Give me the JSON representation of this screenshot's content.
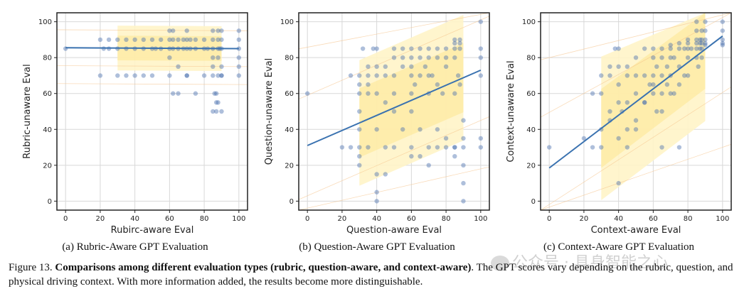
{
  "figure": {
    "caption_label": "Figure 13.",
    "caption_bold": "Comparisons among different evaluation types (rubric, question-aware, and context-aware)",
    "caption_rest": ". The GPT scores vary depending on the rubric, question, and physical driving context. With more information added, the results become more distinguishable."
  },
  "subcaptions": [
    "(a) Rubric-Aware GPT Evaluation",
    "(b) Question-Aware GPT Evaluation",
    "(c) Context-Aware GPT Evaluation"
  ],
  "watermark": "公众号 · 具身智能之心",
  "colors": {
    "points": "#4c72b0",
    "line": "#3a72b0",
    "band": "#fde9a0",
    "band_light": "#fff4c8"
  },
  "chart_data": [
    {
      "type": "scatter",
      "xlabel": "Rubirc-aware Eval",
      "ylabel": "Rubric-unaware Eval",
      "xlim": [
        -5,
        105
      ],
      "ylim": [
        -5,
        105
      ],
      "xticks": [
        0,
        20,
        40,
        60,
        80,
        100
      ],
      "yticks": [
        0,
        20,
        40,
        60,
        80,
        100
      ],
      "grid": true,
      "fit": {
        "intercept": 85.5,
        "slope": -0.005
      },
      "band": {
        "x": [
          30,
          90
        ],
        "y": [
          70,
          95
        ]
      },
      "x": [
        0,
        20,
        20,
        22,
        25,
        25,
        30,
        30,
        30,
        35,
        35,
        35,
        40,
        40,
        40,
        45,
        45,
        50,
        50,
        50,
        55,
        55,
        60,
        60,
        60,
        60,
        60,
        62,
        62,
        62,
        65,
        65,
        65,
        65,
        68,
        68,
        70,
        70,
        70,
        70,
        72,
        72,
        75,
        75,
        75,
        80,
        80,
        80,
        82,
        85,
        85,
        85,
        85,
        85,
        85,
        86,
        87,
        87,
        88,
        88,
        88,
        88,
        88,
        90,
        90,
        90,
        90,
        90,
        90,
        100,
        100,
        100,
        100,
        100,
        100,
        62,
        70,
        85,
        87,
        88,
        89,
        90,
        45,
        52
      ],
      "y": [
        85,
        90,
        70,
        85,
        90,
        85,
        90,
        85,
        70,
        90,
        85,
        70,
        90,
        85,
        70,
        90,
        85,
        90,
        85,
        70,
        90,
        85,
        95,
        90,
        85,
        80,
        70,
        95,
        90,
        85,
        90,
        85,
        75,
        60,
        90,
        85,
        95,
        90,
        85,
        70,
        90,
        85,
        90,
        85,
        60,
        90,
        85,
        70,
        85,
        95,
        90,
        85,
        80,
        75,
        70,
        60,
        55,
        50,
        95,
        90,
        85,
        80,
        70,
        95,
        90,
        85,
        75,
        70,
        50,
        95,
        90,
        85,
        80,
        75,
        70,
        60,
        70,
        50,
        60,
        55,
        85,
        70,
        70,
        85
      ]
    },
    {
      "type": "scatter",
      "xlabel": "Question-aware Eval",
      "ylabel": "Question-unaware Eval",
      "xlim": [
        -5,
        105
      ],
      "ylim": [
        -5,
        105
      ],
      "xticks": [
        0,
        20,
        40,
        60,
        80,
        100
      ],
      "yticks": [
        0,
        20,
        40,
        60,
        80,
        100
      ],
      "grid": true,
      "fit": {
        "intercept": 31,
        "slope": 0.42
      },
      "band": {
        "x": [
          30,
          90
        ],
        "y": [
          20,
          90
        ]
      },
      "x": [
        0,
        20,
        25,
        25,
        30,
        30,
        30,
        30,
        30,
        30,
        30,
        32,
        35,
        35,
        35,
        35,
        35,
        38,
        40,
        40,
        40,
        40,
        40,
        40,
        45,
        45,
        45,
        45,
        50,
        50,
        50,
        50,
        50,
        55,
        55,
        55,
        55,
        60,
        60,
        60,
        60,
        60,
        60,
        60,
        62,
        65,
        65,
        65,
        65,
        65,
        68,
        70,
        70,
        70,
        70,
        70,
        72,
        75,
        75,
        75,
        75,
        75,
        78,
        80,
        80,
        80,
        80,
        85,
        85,
        85,
        85,
        85,
        85,
        85,
        87,
        88,
        88,
        88,
        88,
        90,
        90,
        90,
        90,
        90,
        100,
        100,
        100,
        100,
        100,
        100,
        40,
        40,
        30,
        45,
        50,
        60,
        70,
        80,
        85,
        90
      ],
      "y": [
        60,
        30,
        70,
        30,
        70,
        65,
        60,
        50,
        40,
        30,
        25,
        85,
        75,
        70,
        65,
        60,
        30,
        85,
        85,
        75,
        70,
        60,
        40,
        0,
        75,
        70,
        55,
        30,
        85,
        80,
        70,
        60,
        50,
        85,
        80,
        75,
        40,
        85,
        80,
        75,
        70,
        60,
        50,
        30,
        65,
        85,
        80,
        70,
        40,
        25,
        75,
        85,
        80,
        70,
        60,
        30,
        70,
        85,
        80,
        65,
        40,
        30,
        60,
        85,
        80,
        75,
        30,
        90,
        88,
        85,
        80,
        60,
        30,
        25,
        70,
        90,
        88,
        85,
        65,
        35,
        30,
        0,
        20,
        10,
        100,
        85,
        80,
        70,
        35,
        30,
        15,
        5,
        20,
        15,
        30,
        25,
        20,
        35,
        30,
        45
      ]
    },
    {
      "type": "scatter",
      "xlabel": "Context-aware Eval",
      "ylabel": "Context-unaware Eval",
      "xlim": [
        -5,
        105
      ],
      "ylim": [
        -5,
        105
      ],
      "xticks": [
        0,
        20,
        40,
        60,
        80,
        100
      ],
      "yticks": [
        0,
        20,
        40,
        60,
        80,
        100
      ],
      "grid": true,
      "fit": {
        "intercept": 18.5,
        "slope": 0.735
      },
      "band": {
        "x": [
          30,
          90
        ],
        "y": [
          20,
          100
        ]
      },
      "x": [
        0,
        20,
        25,
        25,
        30,
        30,
        30,
        30,
        35,
        35,
        35,
        35,
        38,
        40,
        40,
        40,
        40,
        40,
        42,
        45,
        45,
        45,
        45,
        50,
        50,
        50,
        50,
        55,
        55,
        55,
        58,
        60,
        60,
        60,
        60,
        60,
        62,
        62,
        65,
        65,
        65,
        65,
        65,
        68,
        68,
        70,
        70,
        70,
        70,
        72,
        72,
        75,
        75,
        75,
        75,
        78,
        78,
        80,
        80,
        80,
        80,
        80,
        82,
        85,
        85,
        85,
        85,
        85,
        85,
        86,
        87,
        87,
        87,
        88,
        88,
        88,
        88,
        88,
        90,
        90,
        90,
        90,
        90,
        100,
        100,
        100,
        100,
        100,
        40,
        45,
        50,
        55,
        65,
        70,
        75
      ],
      "y": [
        30,
        35,
        60,
        30,
        70,
        60,
        40,
        30,
        75,
        70,
        50,
        45,
        85,
        85,
        75,
        65,
        55,
        10,
        50,
        75,
        70,
        55,
        30,
        80,
        70,
        60,
        40,
        85,
        70,
        55,
        65,
        85,
        80,
        70,
        65,
        60,
        75,
        50,
        85,
        80,
        70,
        60,
        30,
        75,
        65,
        87,
        85,
        80,
        70,
        80,
        60,
        88,
        85,
        75,
        30,
        85,
        70,
        90,
        88,
        85,
        80,
        70,
        85,
        100,
        95,
        90,
        88,
        85,
        80,
        75,
        90,
        88,
        85,
        95,
        90,
        88,
        85,
        80,
        100,
        95,
        90,
        88,
        87,
        100,
        95,
        90,
        88,
        87,
        35,
        40,
        45,
        55,
        50,
        60,
        65
      ]
    }
  ]
}
